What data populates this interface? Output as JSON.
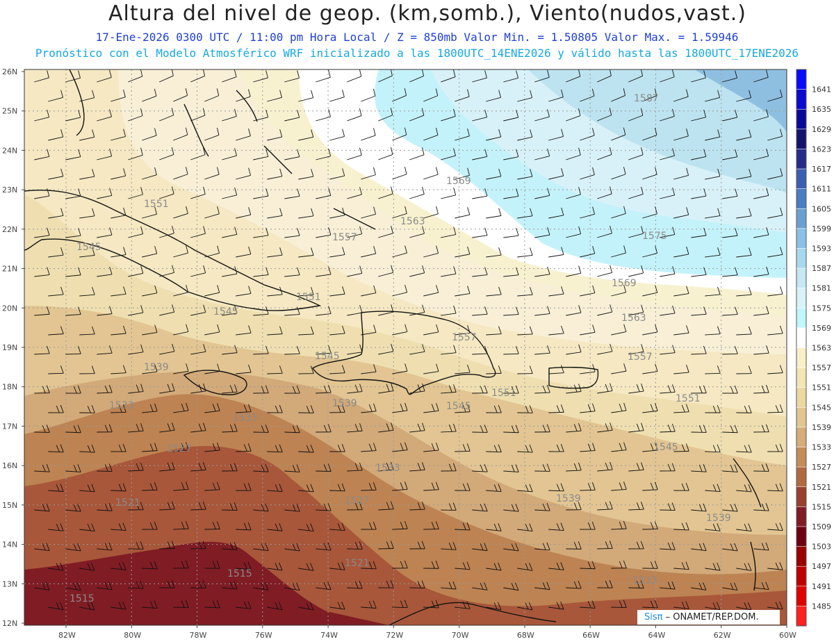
{
  "title": "Altura del nivel de geop. (km,somb.), Viento(nudos,vast.)",
  "subtitle_line1": "17-Ene-2026  0300 UTC / 11:00 pm Hora Local / Z = 850mb    Valor Min. = 1.50805   Valor Max. = 1.59946",
  "subtitle_line2": "Pronóstico con el Modelo Atmosférico WRF inicializado a las 1800UTC_14ENE2026 y válido hasta las  1800UTC_17ENE2026",
  "credit": {
    "brand": "Sisπ",
    "text": " – ONAMET/REP.DOM."
  },
  "map": {
    "lat_ticks": [
      "26N",
      "25N",
      "24N",
      "23N",
      "22N",
      "21N",
      "20N",
      "19N",
      "18N",
      "17N",
      "16N",
      "15N",
      "14N",
      "13N",
      "12N"
    ],
    "lon_ticks": [
      "82W",
      "80W",
      "78W",
      "76W",
      "74W",
      "72W",
      "70W",
      "68W",
      "66W",
      "64W",
      "62W",
      "60W"
    ]
  },
  "contour_labels": [
    {
      "text": "1587"
    },
    {
      "text": "1569"
    },
    {
      "text": "1575"
    },
    {
      "text": "1563"
    },
    {
      "text": "1557"
    },
    {
      "text": "1551"
    },
    {
      "text": "1545"
    },
    {
      "text": "1569"
    },
    {
      "text": "1563"
    },
    {
      "text": "1551"
    },
    {
      "text": "1545"
    },
    {
      "text": "1557"
    },
    {
      "text": "1557"
    },
    {
      "text": "1539"
    },
    {
      "text": "1545"
    },
    {
      "text": "1551"
    },
    {
      "text": "1551"
    },
    {
      "text": "1539"
    },
    {
      "text": "1545"
    },
    {
      "text": "1533"
    },
    {
      "text": "1533"
    },
    {
      "text": "1545"
    },
    {
      "text": "1527"
    },
    {
      "text": "1533"
    },
    {
      "text": "1539"
    },
    {
      "text": "1521"
    },
    {
      "text": "1527"
    },
    {
      "text": "1539"
    },
    {
      "text": "1521"
    },
    {
      "text": "1515"
    },
    {
      "text": "1515"
    },
    {
      "text": "1533"
    }
  ],
  "colorbar": {
    "labels": [
      "1641",
      "1635",
      "1629",
      "1623",
      "1617",
      "1611",
      "1605",
      "1599",
      "1593",
      "1587",
      "1581",
      "1575",
      "1569",
      "1563",
      "1557",
      "1551",
      "1545",
      "1539",
      "1533",
      "1527",
      "1521",
      "1515",
      "1509",
      "1503",
      "1497",
      "1491",
      "1485"
    ],
    "colors": [
      "#0a0aff",
      "#0a0ad0",
      "#0a0a9a",
      "#14146e",
      "#272c8a",
      "#3b5fb0",
      "#4a7ec0",
      "#6a9fd0",
      "#8cc0e6",
      "#a8d8ee",
      "#c4e8f4",
      "#d8f2f8",
      "#c0f6fc",
      "#ffffff",
      "#f8f0c8",
      "#f4e6b4",
      "#ecd8a0",
      "#e2c690",
      "#d4ad78",
      "#c48c58",
      "#b06a40",
      "#98402f",
      "#801c24",
      "#6e0010",
      "#9a0000",
      "#c00000",
      "#e00000",
      "#ff2020"
    ]
  }
}
